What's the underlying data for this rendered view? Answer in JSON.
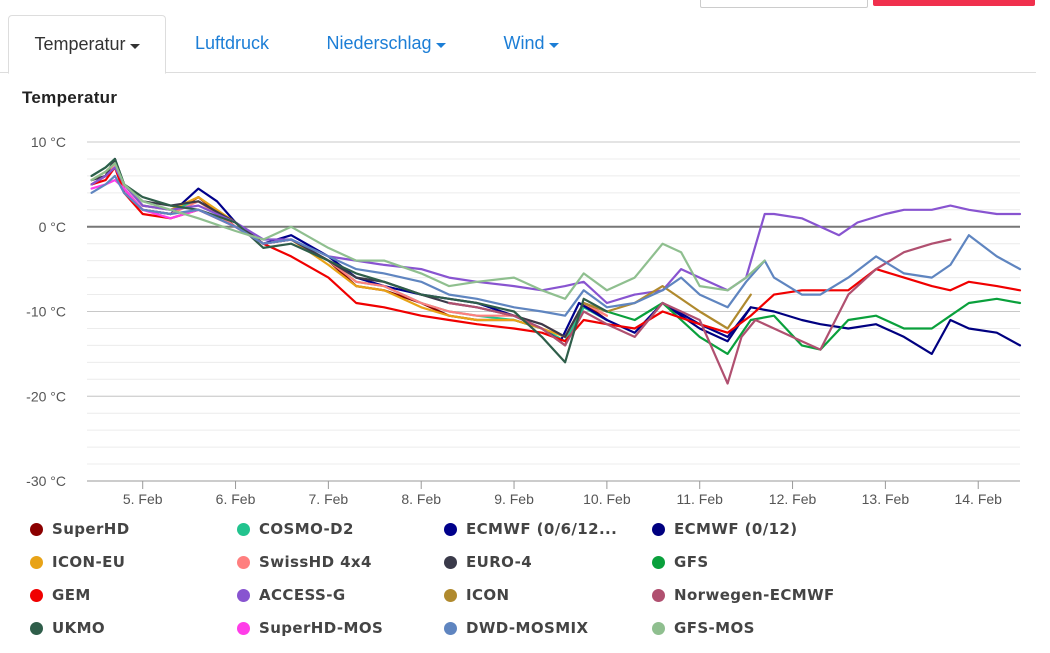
{
  "tabs": [
    {
      "label": "Temperatur",
      "active": true,
      "dropdown": true
    },
    {
      "label": "Luftdruck",
      "active": false,
      "dropdown": false
    },
    {
      "label": "Niederschlag",
      "active": false,
      "dropdown": true
    },
    {
      "label": "Wind",
      "active": false,
      "dropdown": true
    }
  ],
  "colors": {
    "accent": "#1c7ed6",
    "alert": "#f0304d"
  },
  "chart_data": {
    "type": "line",
    "title": "Temperatur",
    "xlabel": "",
    "ylabel": "",
    "y_ticks": [
      "10 °C",
      "0 °C",
      "-10 °C",
      "-20 °C",
      "-30 °C"
    ],
    "ylim": [
      -30,
      10
    ],
    "x_range_days": [
      4.4,
      14.45
    ],
    "x_ticks": [
      {
        "label": "5. Feb",
        "day": 5
      },
      {
        "label": "6. Feb",
        "day": 6
      },
      {
        "label": "7. Feb",
        "day": 7
      },
      {
        "label": "8. Feb",
        "day": 8
      },
      {
        "label": "9. Feb",
        "day": 9
      },
      {
        "label": "10. Feb",
        "day": 10
      },
      {
        "label": "11. Feb",
        "day": 11
      },
      {
        "label": "12. Feb",
        "day": 12
      },
      {
        "label": "13. Feb",
        "day": 13
      },
      {
        "label": "14. Feb",
        "day": 14
      }
    ],
    "grid": true,
    "legend_position": "bottom",
    "series": [
      {
        "name": "SuperHD",
        "color": "#8b0000",
        "x": [
          4.45,
          4.6,
          4.7,
          4.8,
          5,
          5.3,
          5.6,
          6,
          6.3,
          6.6,
          7,
          7.3,
          7.6,
          8,
          8.3,
          8.6,
          9,
          9.3,
          9.55,
          9.75,
          10
        ],
        "y": [
          5,
          6,
          8,
          4,
          2,
          1.5,
          3.5,
          0,
          -2,
          -1.5,
          -4,
          -7,
          -7.5,
          -9,
          -10.5,
          -11,
          -11,
          -12,
          -14,
          -9,
          -11
        ]
      },
      {
        "name": "COSMO-D2",
        "color": "#22c38e",
        "x": [
          4.45,
          4.6,
          4.7,
          4.8,
          5,
          5.3,
          5.6,
          6,
          6.3,
          6.6,
          7,
          7.3,
          7.6,
          8,
          8.3,
          8.6,
          9,
          9.3,
          9.55,
          9.75,
          10
        ],
        "y": [
          6,
          7,
          8,
          5,
          2.5,
          2,
          3,
          0.5,
          -2,
          -1.5,
          -4,
          -6.5,
          -7,
          -9,
          -10,
          -10.5,
          -11,
          -12,
          -13.5,
          -9.5,
          -11
        ]
      },
      {
        "name": "ECMWF (0/6/12...",
        "color": "#00008b",
        "x": [
          4.45,
          4.6,
          4.7,
          4.8,
          5,
          5.3,
          5.6,
          5.8,
          6,
          6.3,
          6.6,
          7,
          7.3,
          7.6,
          8,
          8.3,
          8.6,
          9,
          9.3,
          9.5,
          9.7,
          10,
          10.3,
          10.6,
          11,
          11.3,
          11.55
        ],
        "y": [
          5,
          6,
          8,
          4.5,
          2,
          1.5,
          4.5,
          3,
          0.5,
          -2,
          -1,
          -3.5,
          -6,
          -7,
          -8,
          -8.5,
          -9,
          -10.5,
          -12,
          -13.5,
          -9,
          -11,
          -12.5,
          -9,
          -11.5,
          -13,
          -9.5
        ]
      },
      {
        "name": "ECMWF (0/12)",
        "color": "#000080",
        "x": [
          10.6,
          11,
          11.3,
          11.55,
          11.8,
          12.1,
          12.3,
          12.6,
          12.9,
          13.2,
          13.5,
          13.7,
          13.9,
          14.2,
          14.45
        ],
        "y": [
          -9,
          -12,
          -13.5,
          -9.5,
          -10,
          -11,
          -11.5,
          -12,
          -11.5,
          -13,
          -15,
          -11,
          -12,
          -12.5,
          -14
        ]
      },
      {
        "name": "ICON-EU",
        "color": "#e8a317",
        "x": [
          4.45,
          4.6,
          4.7,
          4.8,
          5,
          5.3,
          5.6,
          6,
          6.3,
          6.6,
          7,
          7.3,
          7.6,
          8,
          8.3,
          8.6,
          9,
          9.3,
          9.55,
          9.75,
          10
        ],
        "y": [
          5.5,
          6.5,
          7.5,
          5,
          2.5,
          2,
          3.5,
          0.5,
          -2,
          -1.5,
          -4.5,
          -7,
          -7.5,
          -9.5,
          -10.5,
          -11,
          -11,
          -12,
          -13,
          -9,
          -10.5
        ]
      },
      {
        "name": "SwissHD 4x4",
        "color": "#ff7f7f",
        "x": [
          4.45,
          4.6,
          4.7,
          4.8,
          5,
          5.3,
          5.6,
          6,
          6.3,
          6.6,
          7,
          7.3,
          7.6,
          8,
          8.3,
          8.6,
          9,
          9.3,
          9.55,
          9.75,
          10
        ],
        "y": [
          5,
          6,
          7.5,
          4.5,
          2,
          1.5,
          3,
          0,
          -2,
          -1.5,
          -4,
          -6.5,
          -7,
          -9,
          -10,
          -10.5,
          -10.5,
          -11.5,
          -13,
          -9,
          -10.5
        ]
      },
      {
        "name": "EURO-4",
        "color": "#3a3a4a",
        "x": [
          4.45,
          4.6,
          4.7,
          4.8,
          5,
          5.3,
          5.6,
          6,
          6.3,
          6.6,
          7,
          7.3,
          7.6,
          8,
          8.3,
          8.6,
          9,
          9.3,
          9.55,
          9.75,
          10
        ],
        "y": [
          5.5,
          6,
          8,
          5,
          3,
          2.5,
          3,
          0.5,
          -2,
          -1.5,
          -4,
          -6,
          -6.5,
          -8,
          -9,
          -9.5,
          -10.5,
          -11.5,
          -13,
          -9,
          -10
        ]
      },
      {
        "name": "GFS",
        "color": "#0aa03c",
        "x": [
          10,
          10.3,
          10.6,
          11,
          11.3,
          11.55,
          11.8,
          12.1,
          12.3,
          12.6,
          12.9,
          13.2,
          13.5,
          13.7,
          13.9,
          14.2,
          14.45
        ],
        "y": [
          -10,
          -11,
          -9,
          -13,
          -15,
          -11,
          -10.5,
          -14,
          -14.5,
          -11,
          -10.5,
          -12,
          -12,
          -10.5,
          -9,
          -8.5,
          -9
        ]
      },
      {
        "name": "GEM",
        "color": "#f00000",
        "x": [
          4.45,
          4.6,
          4.7,
          4.8,
          5,
          5.3,
          5.6,
          6,
          6.3,
          6.6,
          7,
          7.3,
          7.6,
          8,
          8.3,
          8.6,
          9,
          9.3,
          9.55,
          9.75,
          10,
          10.3,
          10.6,
          11,
          11.3,
          11.55,
          11.8,
          12.1,
          12.3,
          12.6,
          12.9,
          13.2,
          13.5,
          13.7,
          13.9,
          14.2,
          14.45
        ],
        "y": [
          5,
          5.5,
          7,
          4,
          1.5,
          1,
          2,
          0,
          -2,
          -3.5,
          -6,
          -9,
          -9.5,
          -10.5,
          -11,
          -11.5,
          -12,
          -12.5,
          -13.5,
          -11,
          -11.5,
          -12,
          -10,
          -11.5,
          -12.5,
          -10.5,
          -8,
          -7.5,
          -7.5,
          -7.5,
          -5,
          -6,
          -7,
          -7.5,
          -6.5,
          -7,
          -7.5
        ]
      },
      {
        "name": "ACCESS-G",
        "color": "#8854d0",
        "x": [
          4.45,
          4.6,
          4.7,
          4.8,
          5,
          5.3,
          5.6,
          6,
          6.3,
          6.6,
          7,
          7.3,
          7.6,
          8,
          8.3,
          8.6,
          9,
          9.3,
          9.55,
          9.75,
          10,
          10.3,
          10.6,
          10.8,
          11,
          11.3,
          11.5,
          11.7,
          11.8,
          12.1,
          12.3,
          12.5,
          12.7,
          13,
          13.2,
          13.5,
          13.7,
          13.9,
          14.2,
          14.45
        ],
        "y": [
          5,
          6,
          7,
          5,
          2.5,
          2,
          2.5,
          0.5,
          -1.5,
          -1.5,
          -3.5,
          -4,
          -4.5,
          -5,
          -6,
          -6.5,
          -7,
          -7.5,
          -7,
          -6.5,
          -9,
          -8,
          -7.5,
          -5,
          -6,
          -7.5,
          -6,
          1.5,
          1.5,
          1,
          0,
          -1,
          0.5,
          1.5,
          2,
          2,
          2.5,
          2,
          1.5,
          1.5
        ]
      },
      {
        "name": "ICON",
        "color": "#b08a2e",
        "x": [
          9.75,
          10,
          10.3,
          10.6,
          11,
          11.3,
          11.55
        ],
        "y": [
          -9,
          -10,
          -9,
          -7,
          -10,
          -12,
          -8
        ]
      },
      {
        "name": "Norwegen-ECMWF",
        "color": "#b05070",
        "x": [
          8.3,
          8.6,
          9,
          9.3,
          9.55,
          9.75,
          10,
          10.3,
          10.6,
          11,
          11.3,
          11.45,
          11.6,
          11.8,
          12.1,
          12.3,
          12.6,
          12.9,
          13.2,
          13.5,
          13.7
        ],
        "y": [
          -9,
          -9.5,
          -10.5,
          -12,
          -14,
          -10,
          -11.5,
          -13,
          -9,
          -11,
          -18.5,
          -13,
          -11,
          -12,
          -13.5,
          -14.5,
          -8,
          -5,
          -3,
          -2,
          -1.5
        ]
      },
      {
        "name": "UKMO",
        "color": "#2f5e4a",
        "x": [
          4.45,
          4.6,
          4.7,
          4.8,
          5,
          5.3,
          5.6,
          6,
          6.3,
          6.6,
          7,
          7.3,
          7.6,
          8,
          8.3,
          8.6,
          9,
          9.3,
          9.55,
          9.75,
          10
        ],
        "y": [
          6,
          7,
          8,
          5,
          3.5,
          2.5,
          2,
          0.5,
          -2.5,
          -2,
          -4,
          -5.5,
          -6.5,
          -8,
          -8.5,
          -9,
          -10,
          -13,
          -16,
          -8.5,
          -10
        ]
      },
      {
        "name": "SuperHD-MOS",
        "color": "#ff3de8",
        "x": [
          4.45,
          4.6,
          4.7,
          4.8,
          5,
          5.3,
          5.6,
          6,
          6.3,
          6.6
        ],
        "y": [
          4.5,
          5,
          5.5,
          4.5,
          2,
          1,
          2,
          0,
          -2,
          -1.5
        ]
      },
      {
        "name": "DWD-MOSMIX",
        "color": "#5f85c0",
        "x": [
          4.45,
          4.6,
          4.7,
          4.8,
          5,
          5.3,
          5.6,
          6,
          6.3,
          6.6,
          7,
          7.3,
          7.6,
          8,
          8.3,
          8.6,
          9,
          9.3,
          9.55,
          9.75,
          10,
          10.3,
          10.6,
          10.8,
          11,
          11.3,
          11.5,
          11.7,
          11.8,
          12.1,
          12.3,
          12.6,
          12.9,
          13.2,
          13.5,
          13.7,
          13.9,
          14.2,
          14.45
        ],
        "y": [
          4,
          5,
          6,
          4,
          2,
          1.5,
          2,
          0,
          -2,
          -1.5,
          -3.5,
          -5,
          -5.5,
          -6.5,
          -8,
          -8.5,
          -9.5,
          -10,
          -10.5,
          -7.5,
          -9.5,
          -9,
          -7.5,
          -6,
          -8,
          -9.5,
          -6.5,
          -4,
          -6,
          -8,
          -8,
          -6,
          -3.5,
          -5.5,
          -6,
          -4.5,
          -1,
          -3.5,
          -5
        ]
      },
      {
        "name": "GFS-MOS",
        "color": "#8fbf8f",
        "x": [
          4.45,
          4.6,
          4.7,
          4.8,
          5,
          5.3,
          5.6,
          6,
          6.3,
          6.6,
          7,
          7.3,
          7.6,
          8,
          8.3,
          8.6,
          9,
          9.3,
          9.55,
          9.75,
          10,
          10.3,
          10.6,
          10.8,
          11,
          11.3,
          11.5,
          11.7
        ],
        "y": [
          5.5,
          6.5,
          7.5,
          5,
          3,
          2,
          1,
          -0.5,
          -1.5,
          0,
          -2.5,
          -4,
          -4,
          -5.5,
          -7,
          -6.5,
          -6,
          -7.5,
          -8.5,
          -5.5,
          -7.5,
          -6,
          -2,
          -3,
          -7,
          -7.5,
          -6,
          -4
        ]
      }
    ]
  }
}
